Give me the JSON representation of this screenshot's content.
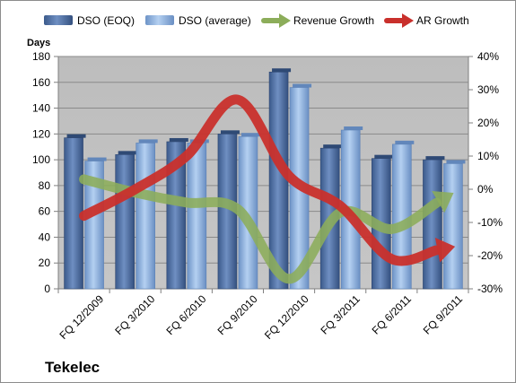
{
  "chart_data": {
    "type": "bar",
    "categories": [
      "FQ 12/2009",
      "FQ 3/2010",
      "FQ 6/2010",
      "FQ 9/2010",
      "FQ 12/2010",
      "FQ 3/2011",
      "FQ 6/2011",
      "FQ 9/2011"
    ],
    "series": [
      {
        "name": "DSO (EOQ)",
        "type": "bar",
        "axis": "left",
        "color": "#4f6fa0",
        "values": [
          117,
          104,
          114,
          120,
          168,
          109,
          101,
          100
        ]
      },
      {
        "name": "DSO (average)",
        "type": "bar",
        "axis": "left",
        "color": "#8fb4e3",
        "values": [
          99,
          113,
          113,
          118,
          156,
          123,
          112,
          97
        ]
      },
      {
        "name": "Revenue Growth",
        "type": "line",
        "axis": "right",
        "color": "#8cad5a",
        "unit": "%",
        "values": [
          3,
          -1,
          -4,
          -6,
          -27,
          -7,
          -12,
          -3
        ]
      },
      {
        "name": "AR Growth",
        "type": "line",
        "axis": "right",
        "color": "#c9302c",
        "unit": "%",
        "values": [
          -8,
          0,
          10,
          27,
          4,
          -5,
          -21,
          -18
        ]
      }
    ],
    "ylabel": "Days",
    "ylim": [
      0,
      180
    ],
    "yticks": [
      0,
      20,
      40,
      60,
      80,
      100,
      120,
      140,
      160,
      180
    ],
    "y2lim": [
      -30,
      40
    ],
    "y2ticks": [
      "-30%",
      "-20%",
      "-10%",
      "0%",
      "10%",
      "20%",
      "30%",
      "40%"
    ],
    "y2tick_values": [
      -30,
      -20,
      -10,
      0,
      10,
      20,
      30,
      40
    ],
    "legend_position": "top",
    "grid": true,
    "plot_background": "#c0c0c0",
    "company": "Tekelec"
  }
}
